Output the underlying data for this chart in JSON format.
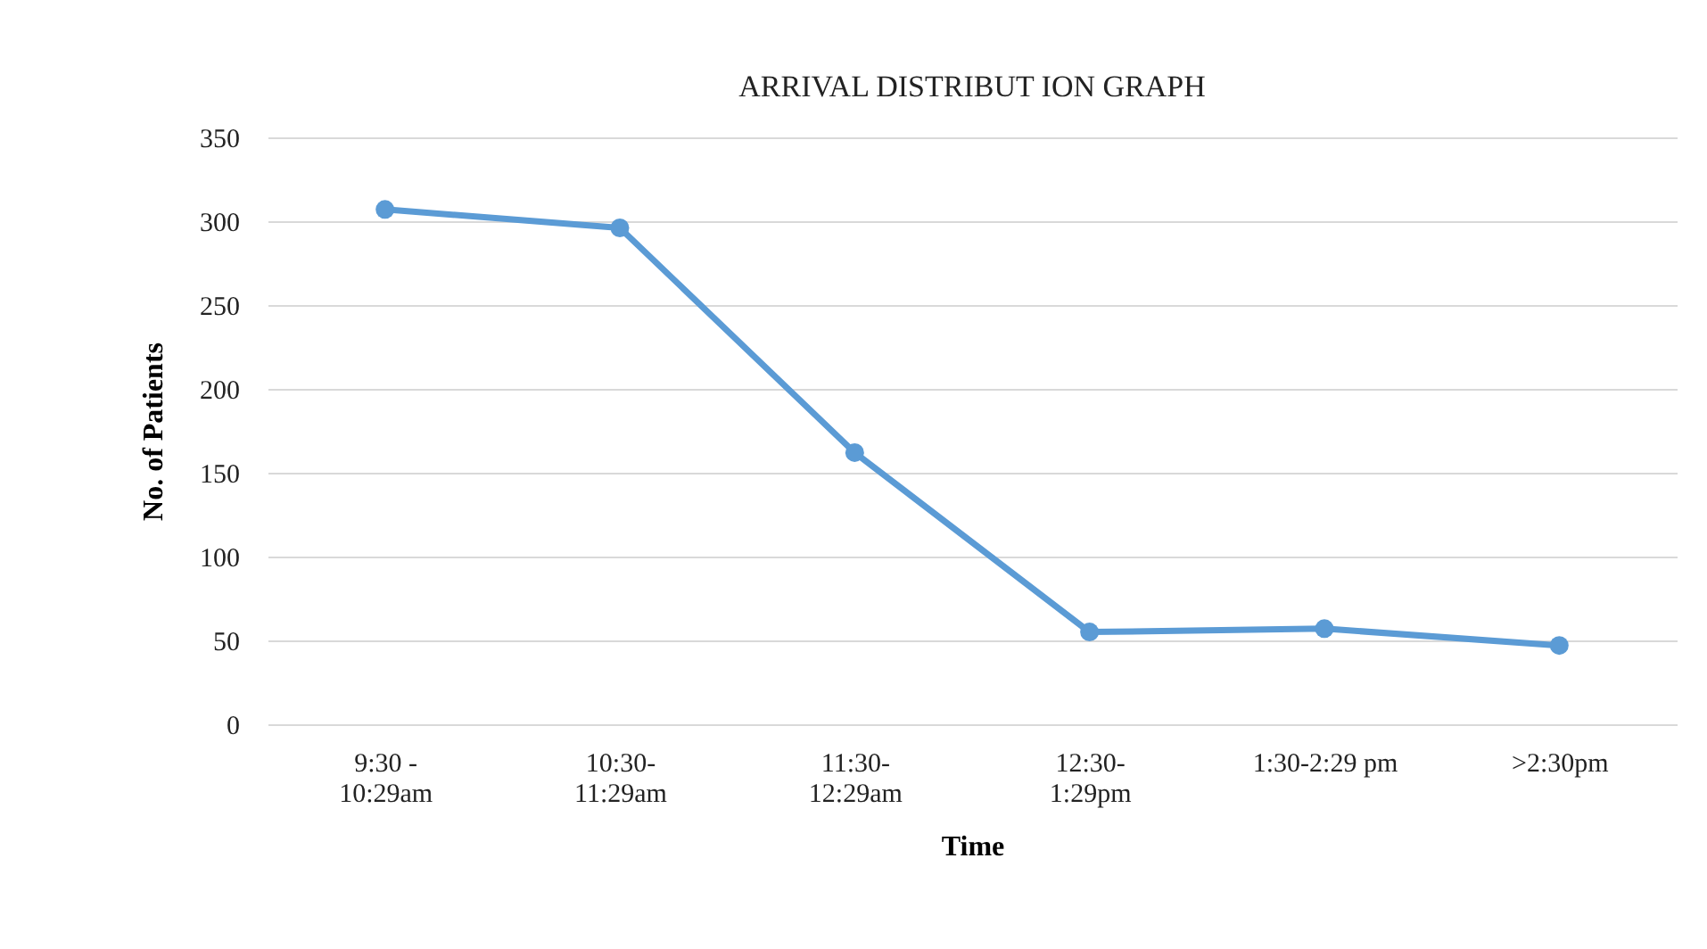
{
  "chart_data": {
    "type": "line",
    "title": "ARRIVAL  DISTRIBUT ION  GRAPH",
    "xlabel": "Time",
    "ylabel": "No. of Patients",
    "categories": [
      "9:30 -\n10:29am",
      "10:30-\n11:29am",
      "11:30-\n12:29am",
      "12:30-\n1:29pm",
      "1:30-2:29 pm",
      ">2:30pm"
    ],
    "series": [
      {
        "color": "#5b9bd5",
        "values": [
          307,
          296,
          162,
          55,
          57,
          47
        ]
      }
    ],
    "ylim": [
      0,
      350
    ],
    "yticks": [
      0,
      50,
      100,
      150,
      200,
      250,
      300,
      350
    ],
    "grid": "y",
    "marker": "circle",
    "line_style": "solid"
  }
}
